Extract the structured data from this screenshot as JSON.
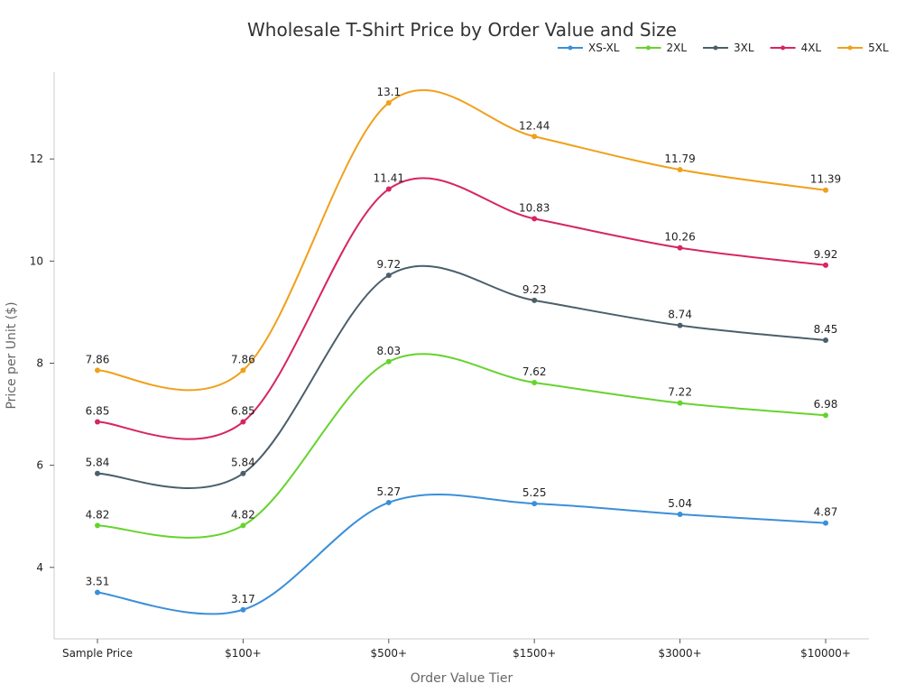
{
  "chart_data": {
    "type": "line",
    "title": "Wholesale T-Shirt Price by Order Value and Size",
    "xlabel": "Order Value Tier",
    "ylabel": "Price per Unit ($)",
    "categories": [
      "Sample Price",
      "$100+",
      "$500+",
      "$1500+",
      "$3000+",
      "$10000+"
    ],
    "ylim": [
      2.6,
      13.7
    ],
    "yticks": [
      4,
      6,
      8,
      10,
      12
    ],
    "grid": false,
    "legend_position": "top-right",
    "series": [
      {
        "name": "XS-XL",
        "color": "#3b8fd9",
        "values": [
          3.51,
          3.17,
          5.27,
          5.25,
          5.04,
          4.87
        ],
        "labels": [
          "3.51",
          "3.17",
          "5.27",
          "5.25",
          "5.04",
          "4.87"
        ]
      },
      {
        "name": "2XL",
        "color": "#66d32e",
        "values": [
          4.82,
          4.82,
          8.03,
          7.62,
          7.22,
          6.98
        ],
        "labels": [
          "4.82",
          "4.82",
          "8.03",
          "7.62",
          "7.22",
          "6.98"
        ]
      },
      {
        "name": "3XL",
        "color": "#4b5f6b",
        "values": [
          5.84,
          5.84,
          9.72,
          9.23,
          8.74,
          8.45
        ],
        "labels": [
          "5.84",
          "5.84",
          "9.72",
          "9.23",
          "8.74",
          "8.45"
        ]
      },
      {
        "name": "4XL",
        "color": "#d6265f",
        "values": [
          6.85,
          6.85,
          11.41,
          10.83,
          10.26,
          9.92
        ],
        "labels": [
          "6.85",
          "6.85",
          "11.41",
          "10.83",
          "10.26",
          "9.92"
        ]
      },
      {
        "name": "5XL",
        "color": "#f0a01b",
        "values": [
          7.86,
          7.86,
          13.1,
          12.44,
          11.79,
          11.39
        ],
        "labels": [
          "7.86",
          "7.86",
          "13.1",
          "12.44",
          "11.79",
          "11.39"
        ]
      }
    ]
  }
}
